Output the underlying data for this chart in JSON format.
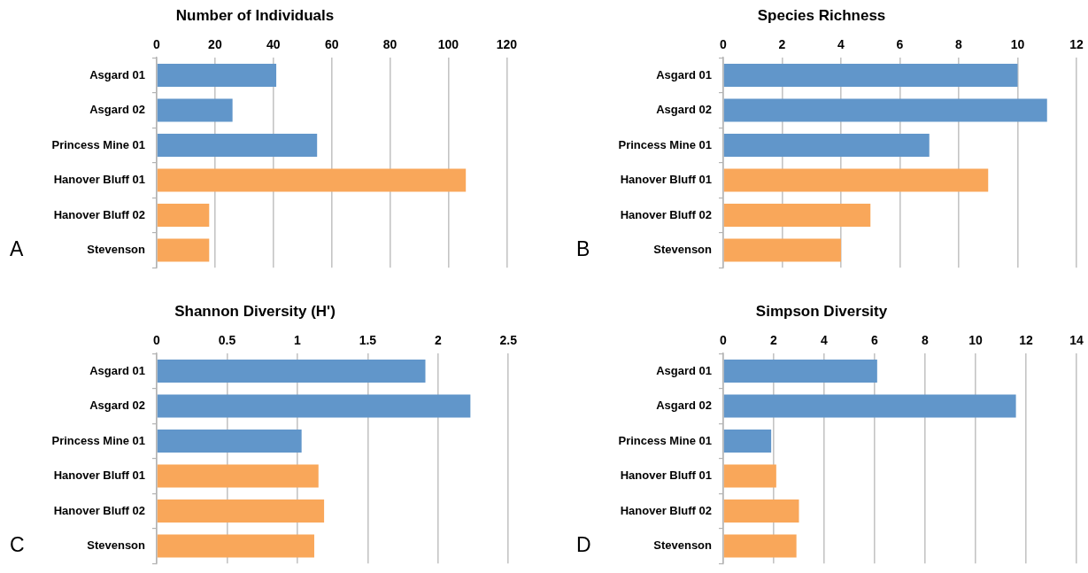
{
  "chart_data": [
    {
      "type": "bar",
      "orientation": "horizontal",
      "title": "Number of Individuals",
      "categories": [
        "Asgard 01",
        "Asgard 02",
        "Princess Mine 01",
        "Hanover Bluff 01",
        "Hanover Bluff 02",
        "Stevenson"
      ],
      "values": [
        41,
        26,
        55,
        106,
        18,
        18
      ],
      "colors": [
        "#6196ca",
        "#6196ca",
        "#6196ca",
        "#f9a75a",
        "#f9a75a",
        "#f9a75a"
      ],
      "xlim": [
        0,
        120
      ],
      "xticks": [
        0,
        20,
        40,
        60,
        80,
        100,
        120
      ],
      "grid": "x",
      "annotations": [
        "A"
      ]
    },
    {
      "type": "bar",
      "orientation": "horizontal",
      "title": "Species Richness",
      "categories": [
        "Asgard 01",
        "Asgard 02",
        "Princess Mine 01",
        "Hanover Bluff 01",
        "Hanover Bluff 02",
        "Stevenson"
      ],
      "values": [
        10,
        11,
        7,
        9,
        5,
        4
      ],
      "colors": [
        "#6196ca",
        "#6196ca",
        "#6196ca",
        "#f9a75a",
        "#f9a75a",
        "#f9a75a"
      ],
      "xlim": [
        0,
        12
      ],
      "xticks": [
        0,
        2,
        4,
        6,
        8,
        10,
        12
      ],
      "grid": "x",
      "annotations": [
        "B"
      ]
    },
    {
      "type": "bar",
      "orientation": "horizontal",
      "title": "Shannon Diversity (H')",
      "categories": [
        "Asgard 01",
        "Asgard 02",
        "Princess Mine 01",
        "Hanover Bluff 01",
        "Hanover Bluff 02",
        "Stevenson"
      ],
      "values": [
        1.91,
        2.23,
        1.03,
        1.15,
        1.19,
        1.12
      ],
      "colors": [
        "#6196ca",
        "#6196ca",
        "#6196ca",
        "#f9a75a",
        "#f9a75a",
        "#f9a75a"
      ],
      "xlim": [
        0,
        2.5
      ],
      "xticks": [
        0,
        0.5,
        1,
        1.5,
        2,
        2.5
      ],
      "grid": "x",
      "annotations": [
        "C"
      ]
    },
    {
      "type": "bar",
      "orientation": "horizontal",
      "title": "Simpson Diversity",
      "categories": [
        "Asgard 01",
        "Asgard 02",
        "Princess Mine 01",
        "Hanover Bluff 01",
        "Hanover Bluff 02",
        "Stevenson"
      ],
      "values": [
        6.1,
        11.6,
        1.9,
        2.1,
        3.0,
        2.9
      ],
      "colors": [
        "#6196ca",
        "#6196ca",
        "#6196ca",
        "#f9a75a",
        "#f9a75a",
        "#f9a75a"
      ],
      "xlim": [
        0,
        14
      ],
      "xticks": [
        0,
        2,
        4,
        6,
        8,
        10,
        12,
        14
      ],
      "grid": "x",
      "annotations": [
        "D"
      ]
    }
  ]
}
